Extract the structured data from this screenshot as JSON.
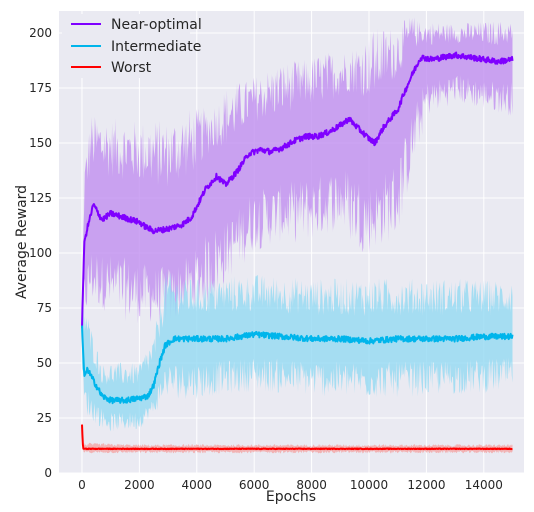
{
  "chart_data": {
    "type": "line",
    "title": "",
    "xlabel": "Epochs",
    "ylabel": "Average Reward",
    "xlim": [
      -800,
      15400
    ],
    "ylim": [
      0,
      210
    ],
    "x_ticks": [
      0,
      2000,
      4000,
      6000,
      8000,
      10000,
      12000,
      14000
    ],
    "y_ticks": [
      0,
      25,
      50,
      75,
      100,
      125,
      150,
      175,
      200
    ],
    "grid": true,
    "legend_position": "top-left",
    "style": "seaborn-darkgrid",
    "series": [
      {
        "name": "Near-optimal",
        "color": "#7f00ff",
        "band_color": "#bf8cf0",
        "mean": [
          [
            0,
            66
          ],
          [
            80,
            105
          ],
          [
            200,
            112
          ],
          [
            400,
            122
          ],
          [
            700,
            115
          ],
          [
            1000,
            118
          ],
          [
            1500,
            116
          ],
          [
            2000,
            114
          ],
          [
            2200,
            112
          ],
          [
            2500,
            110
          ],
          [
            3000,
            111
          ],
          [
            3500,
            113
          ],
          [
            3800,
            116
          ],
          [
            4000,
            121
          ],
          [
            4300,
            129
          ],
          [
            4700,
            135
          ],
          [
            5000,
            131
          ],
          [
            5400,
            137
          ],
          [
            5800,
            145
          ],
          [
            6200,
            147
          ],
          [
            6600,
            146
          ],
          [
            7000,
            148
          ],
          [
            7400,
            151
          ],
          [
            7800,
            153
          ],
          [
            8200,
            153
          ],
          [
            8600,
            155
          ],
          [
            9000,
            158
          ],
          [
            9300,
            161
          ],
          [
            9600,
            157
          ],
          [
            10000,
            152
          ],
          [
            10200,
            150
          ],
          [
            10500,
            157
          ],
          [
            10800,
            162
          ],
          [
            11000,
            165
          ],
          [
            11200,
            172
          ],
          [
            11500,
            181
          ],
          [
            11800,
            189
          ],
          [
            12200,
            188
          ],
          [
            12600,
            189
          ],
          [
            13000,
            190
          ],
          [
            13500,
            189
          ],
          [
            14000,
            188
          ],
          [
            14500,
            187
          ],
          [
            15000,
            188
          ]
        ],
        "band": [
          [
            0,
            70,
            55
          ],
          [
            80,
            130,
            80
          ],
          [
            300,
            150,
            90
          ],
          [
            1000,
            148,
            85
          ],
          [
            2000,
            146,
            82
          ],
          [
            3000,
            145,
            80
          ],
          [
            4000,
            152,
            88
          ],
          [
            5000,
            162,
            100
          ],
          [
            6000,
            170,
            115
          ],
          [
            7000,
            175,
            118
          ],
          [
            8000,
            178,
            120
          ],
          [
            9000,
            182,
            125
          ],
          [
            10000,
            185,
            115
          ],
          [
            11000,
            192,
            125
          ],
          [
            11500,
            200,
            150
          ],
          [
            12000,
            200,
            170
          ],
          [
            13000,
            200,
            175
          ],
          [
            14000,
            200,
            172
          ],
          [
            15000,
            200,
            170
          ]
        ]
      },
      {
        "name": "Intermediate",
        "color": "#00b5eb",
        "band_color": "#91d9f2",
        "mean": [
          [
            0,
            67
          ],
          [
            80,
            44
          ],
          [
            200,
            47
          ],
          [
            400,
            42
          ],
          [
            700,
            35
          ],
          [
            1000,
            33
          ],
          [
            1500,
            33
          ],
          [
            2000,
            34
          ],
          [
            2300,
            35
          ],
          [
            2500,
            40
          ],
          [
            2700,
            50
          ],
          [
            2900,
            58
          ],
          [
            3200,
            61
          ],
          [
            4000,
            61
          ],
          [
            5000,
            61
          ],
          [
            6000,
            63
          ],
          [
            7000,
            62
          ],
          [
            8000,
            61
          ],
          [
            9000,
            61
          ],
          [
            10000,
            60
          ],
          [
            11000,
            61
          ],
          [
            12000,
            61
          ],
          [
            13000,
            61
          ],
          [
            14000,
            62
          ],
          [
            15000,
            62
          ]
        ],
        "band": [
          [
            0,
            70,
            50
          ],
          [
            80,
            72,
            35
          ],
          [
            300,
            60,
            30
          ],
          [
            700,
            45,
            25
          ],
          [
            1000,
            45,
            23
          ],
          [
            2000,
            45,
            24
          ],
          [
            2500,
            55,
            30
          ],
          [
            2900,
            82,
            42
          ],
          [
            3500,
            80,
            42
          ],
          [
            4000,
            80,
            42
          ],
          [
            6000,
            82,
            45
          ],
          [
            8000,
            80,
            43
          ],
          [
            10000,
            80,
            42
          ],
          [
            12000,
            80,
            43
          ],
          [
            14000,
            80,
            44
          ],
          [
            15000,
            80,
            45
          ]
        ]
      },
      {
        "name": "Worst",
        "color": "#ff0000",
        "band_color": "#f4a3a3",
        "mean": [
          [
            0,
            22
          ],
          [
            40,
            11
          ],
          [
            100,
            11
          ],
          [
            2000,
            11
          ],
          [
            4000,
            11
          ],
          [
            6000,
            11
          ],
          [
            8000,
            11
          ],
          [
            10000,
            11
          ],
          [
            12000,
            11
          ],
          [
            14000,
            11
          ],
          [
            15000,
            11
          ]
        ],
        "band": [
          [
            0,
            24,
            18
          ],
          [
            40,
            13,
            9.5
          ],
          [
            2000,
            12.5,
            9.5
          ],
          [
            8000,
            12.5,
            9.5
          ],
          [
            15000,
            12.5,
            9.5
          ]
        ]
      }
    ]
  }
}
